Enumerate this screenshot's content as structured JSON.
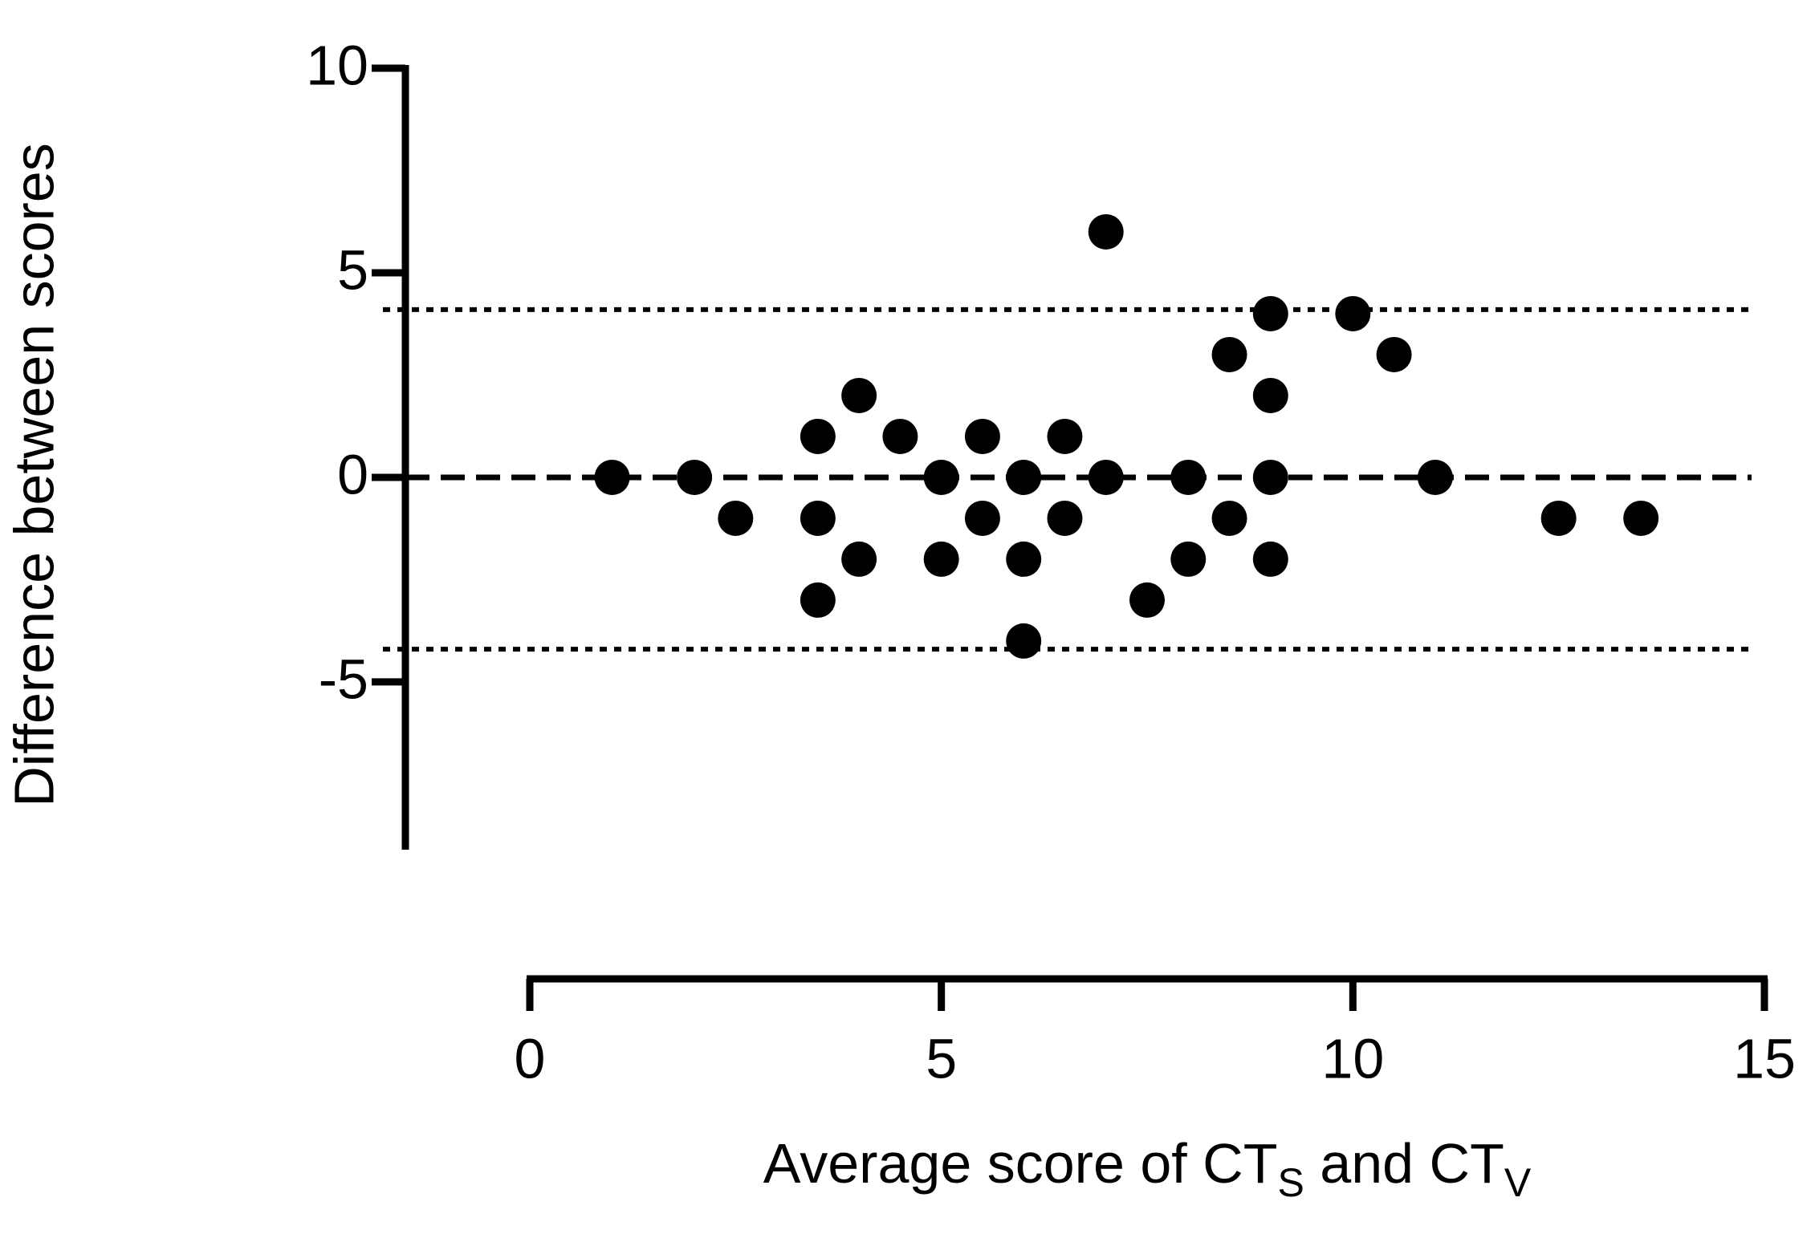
{
  "chart_data": {
    "type": "scatter",
    "y_label": "Difference between scores",
    "x_label_parts": [
      "Average score of CT",
      "S",
      " and CT",
      "V"
    ],
    "x": [
      1,
      2,
      2.5,
      3.5,
      3.5,
      3.5,
      4,
      4,
      4.5,
      5,
      5,
      5.5,
      5.5,
      6,
      6,
      6,
      6.5,
      6.5,
      7,
      7,
      7.5,
      8,
      8,
      8.5,
      8.5,
      9,
      9,
      9,
      9,
      10,
      10.5,
      11,
      12.5,
      13.5
    ],
    "values": [
      0,
      0,
      -1,
      1,
      -1,
      -3,
      2,
      -2,
      1,
      0,
      -2,
      1,
      -1,
      0,
      -2,
      -4,
      1,
      -1,
      6,
      0,
      -3,
      0,
      -2,
      3,
      -1,
      4,
      2,
      0,
      -2,
      4,
      3,
      0,
      -1,
      -1
    ],
    "color": "#000000",
    "xlim": [
      0,
      15
    ],
    "xticks": [
      0,
      5,
      10,
      15
    ],
    "ylim": [
      -9.1,
      10
    ],
    "yticks": [
      -5,
      0,
      5,
      10
    ],
    "reference_lines": [
      {
        "value": 0,
        "style": "dashed"
      },
      {
        "value": 4.1,
        "style": "dotted"
      },
      {
        "value": -4.2,
        "style": "dotted"
      }
    ]
  }
}
